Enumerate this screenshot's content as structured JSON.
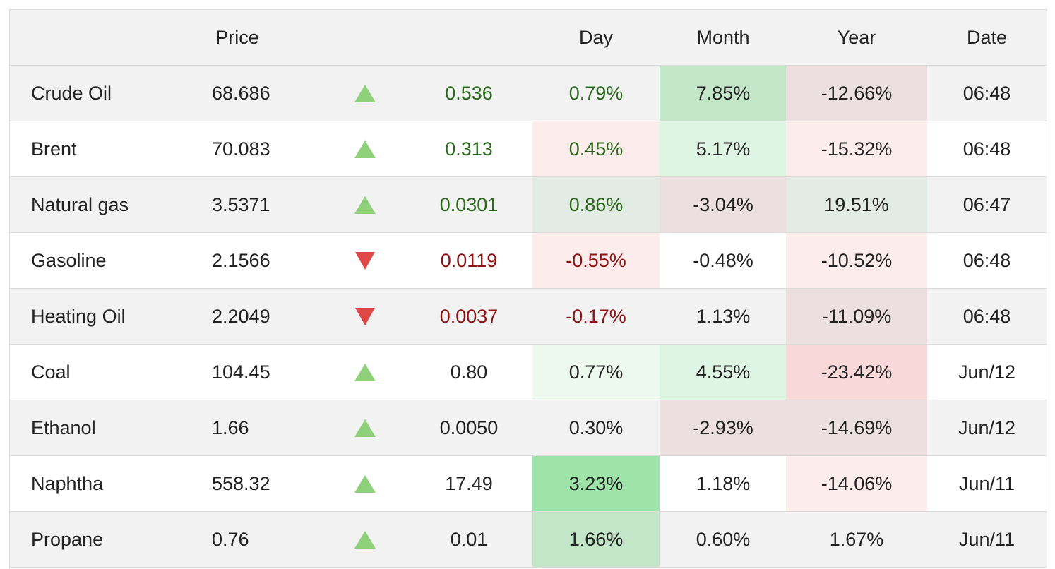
{
  "header": {
    "price": "Price",
    "day": "Day",
    "month": "Month",
    "year": "Year",
    "date": "Date"
  },
  "colors": {
    "row_stripe": "#f2f2f2",
    "up_arrow": "#8fd07a",
    "down_arrow": "#e04848",
    "positive_text": "#2b6a1a",
    "negative_text": "#8a1414"
  },
  "rows": [
    {
      "name": "Crude Oil",
      "price": "68.686",
      "direction": "up",
      "change": "0.536",
      "change_tone": "green",
      "day": "0.79%",
      "day_tone": "green",
      "day_bg": "",
      "month": "7.85%",
      "month_bg": "#c3e6c9",
      "year": "-12.66%",
      "year_bg": "#ecdfdf",
      "date": "06:48"
    },
    {
      "name": "Brent",
      "price": "70.083",
      "direction": "up",
      "change": "0.313",
      "change_tone": "green",
      "day": "0.45%",
      "day_tone": "green",
      "day_bg": "#fdecec",
      "month": "5.17%",
      "month_bg": "#ddf5e2",
      "year": "-15.32%",
      "year_bg": "#fdecec",
      "date": "06:48"
    },
    {
      "name": "Natural gas",
      "price": "3.5371",
      "direction": "up",
      "change": "0.0301",
      "change_tone": "green",
      "day": "0.86%",
      "day_tone": "green",
      "day_bg": "#e2ece4",
      "month": "-3.04%",
      "month_bg": "#ecdfdf",
      "year": "19.51%",
      "year_bg": "#e2ece4",
      "date": "06:47"
    },
    {
      "name": "Gasoline",
      "price": "2.1566",
      "direction": "down",
      "change": "0.0119",
      "change_tone": "red",
      "day": "-0.55%",
      "day_tone": "red",
      "day_bg": "#fdecec",
      "month": "-0.48%",
      "month_bg": "",
      "year": "-10.52%",
      "year_bg": "#fdecec",
      "date": "06:48"
    },
    {
      "name": "Heating Oil",
      "price": "2.2049",
      "direction": "down",
      "change": "0.0037",
      "change_tone": "red",
      "day": "-0.17%",
      "day_tone": "red",
      "day_bg": "",
      "month": "1.13%",
      "month_bg": "",
      "year": "-11.09%",
      "year_bg": "#ecdfdf",
      "date": "06:48"
    },
    {
      "name": "Coal",
      "price": "104.45",
      "direction": "up",
      "change": "0.80",
      "change_tone": "",
      "day": "0.77%",
      "day_tone": "",
      "day_bg": "#edf9ef",
      "month": "4.55%",
      "month_bg": "#ddf5e2",
      "year": "-23.42%",
      "year_bg": "#f9d8da",
      "date": "Jun/12"
    },
    {
      "name": "Ethanol",
      "price": "1.66",
      "direction": "up",
      "change": "0.0050",
      "change_tone": "",
      "day": "0.30%",
      "day_tone": "",
      "day_bg": "",
      "month": "-2.93%",
      "month_bg": "#ecdfdf",
      "year": "-14.69%",
      "year_bg": "#ecdfdf",
      "date": "Jun/12"
    },
    {
      "name": "Naphtha",
      "price": "558.32",
      "direction": "up",
      "change": "17.49",
      "change_tone": "",
      "day": "3.23%",
      "day_tone": "",
      "day_bg": "#9ee3a8",
      "month": "1.18%",
      "month_bg": "",
      "year": "-14.06%",
      "year_bg": "#fdecec",
      "date": "Jun/11"
    },
    {
      "name": "Propane",
      "price": "0.76",
      "direction": "up",
      "change": "0.01",
      "change_tone": "",
      "day": "1.66%",
      "day_tone": "",
      "day_bg": "#c3e6c9",
      "month": "0.60%",
      "month_bg": "",
      "year": "1.67%",
      "year_bg": "",
      "date": "Jun/11"
    }
  ]
}
